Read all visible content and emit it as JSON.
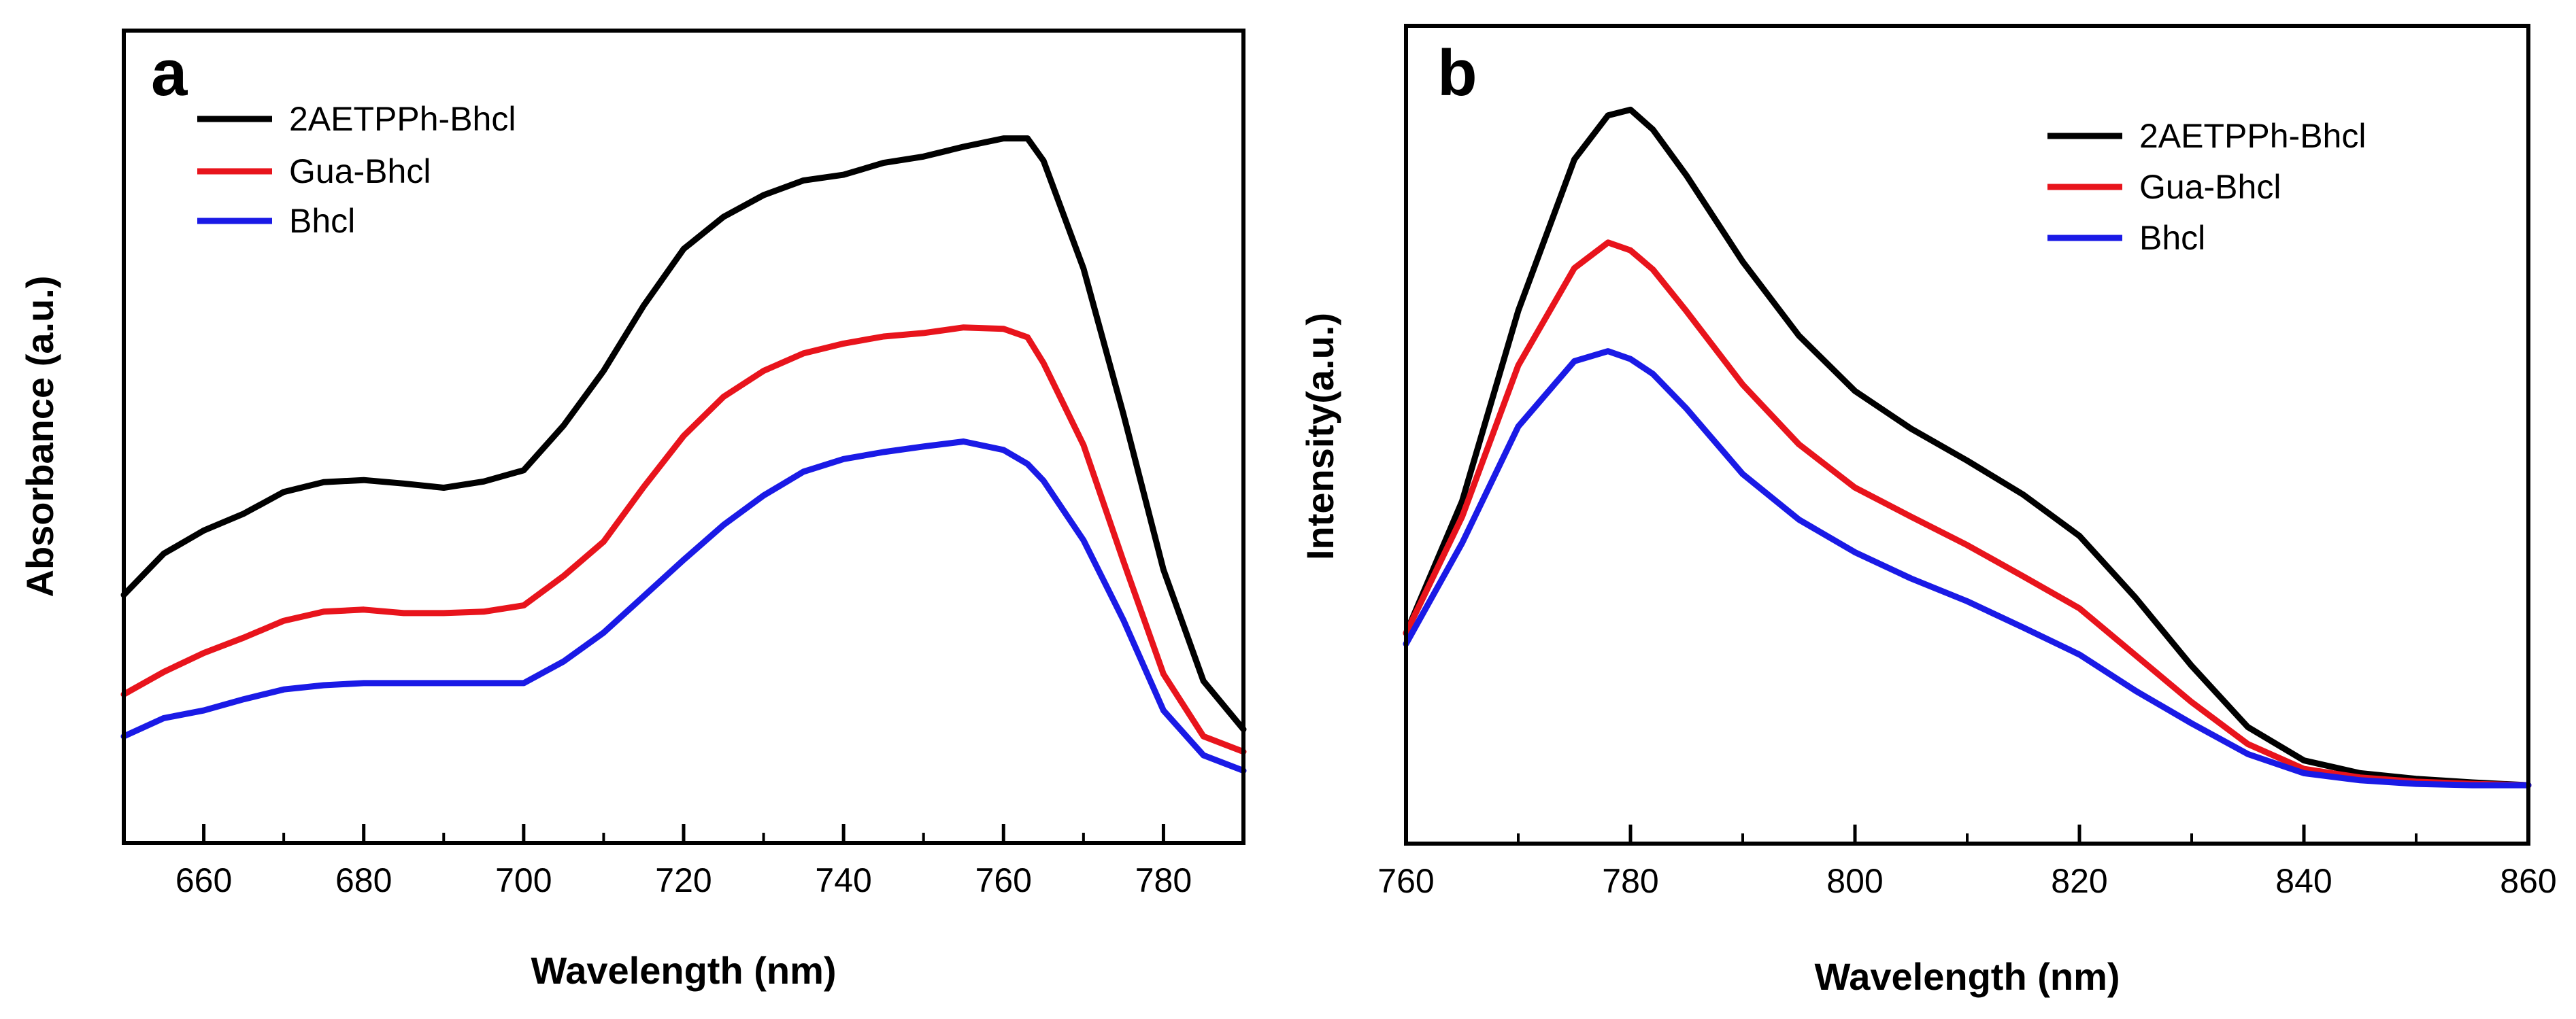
{
  "chart_data": [
    {
      "type": "line",
      "panel": "a",
      "xlabel": "Wavelength (nm)",
      "ylabel": "Absorbance (a.u.)",
      "xlim": [
        650,
        790
      ],
      "ylim": [
        0,
        1
      ],
      "x_ticks": [
        660,
        680,
        700,
        720,
        740,
        760,
        780
      ],
      "y_ticks_shown": false,
      "legend_position": "top-left",
      "x": [
        650,
        655,
        660,
        665,
        670,
        675,
        680,
        685,
        690,
        695,
        700,
        705,
        710,
        715,
        720,
        725,
        730,
        735,
        740,
        745,
        750,
        755,
        760,
        763,
        765,
        770,
        775,
        780,
        785,
        790
      ],
      "series": [
        {
          "name": "2AETPPh-Bhcl",
          "color": "#000000",
          "values": [
            0.296,
            0.355,
            0.388,
            0.412,
            0.443,
            0.457,
            0.46,
            0.455,
            0.449,
            0.458,
            0.474,
            0.538,
            0.616,
            0.709,
            0.79,
            0.836,
            0.867,
            0.888,
            0.896,
            0.913,
            0.922,
            0.936,
            0.948,
            0.948,
            0.916,
            0.762,
            0.554,
            0.332,
            0.173,
            0.104
          ]
        },
        {
          "name": "Gua-Bhcl",
          "color": "#e8141c",
          "values": [
            0.154,
            0.186,
            0.213,
            0.235,
            0.259,
            0.272,
            0.275,
            0.27,
            0.27,
            0.272,
            0.281,
            0.323,
            0.372,
            0.45,
            0.523,
            0.579,
            0.616,
            0.641,
            0.655,
            0.665,
            0.67,
            0.678,
            0.676,
            0.664,
            0.627,
            0.51,
            0.344,
            0.183,
            0.094,
            0.072
          ]
        },
        {
          "name": "Bhcl",
          "color": "#1a1ae6",
          "values": [
            0.094,
            0.12,
            0.131,
            0.147,
            0.161,
            0.167,
            0.17,
            0.17,
            0.17,
            0.17,
            0.17,
            0.201,
            0.242,
            0.294,
            0.346,
            0.396,
            0.438,
            0.472,
            0.49,
            0.5,
            0.508,
            0.515,
            0.503,
            0.483,
            0.459,
            0.374,
            0.26,
            0.131,
            0.067,
            0.045
          ]
        }
      ]
    },
    {
      "type": "line",
      "panel": "b",
      "xlabel": "Wavelength (nm)",
      "ylabel": "Intensity(a.u.)",
      "xlim": [
        760,
        860
      ],
      "ylim": [
        0,
        1
      ],
      "x_ticks": [
        760,
        780,
        800,
        820,
        840,
        860
      ],
      "y_ticks_shown": false,
      "legend_position": "top-right",
      "x": [
        760,
        765,
        770,
        775,
        778,
        780,
        782,
        785,
        790,
        795,
        800,
        805,
        810,
        815,
        820,
        825,
        830,
        835,
        840,
        845,
        850,
        855,
        860
      ],
      "series": [
        {
          "name": "2AETPPh-Bhcl",
          "color": "#000000",
          "values": [
            0.233,
            0.419,
            0.687,
            0.9,
            0.962,
            0.97,
            0.942,
            0.877,
            0.756,
            0.652,
            0.574,
            0.521,
            0.476,
            0.428,
            0.37,
            0.283,
            0.187,
            0.101,
            0.054,
            0.036,
            0.028,
            0.023,
            0.019
          ]
        },
        {
          "name": "Gua-Bhcl",
          "color": "#e8141c",
          "values": [
            0.233,
            0.397,
            0.61,
            0.747,
            0.783,
            0.772,
            0.745,
            0.686,
            0.583,
            0.499,
            0.438,
            0.397,
            0.357,
            0.313,
            0.268,
            0.202,
            0.136,
            0.077,
            0.042,
            0.03,
            0.024,
            0.021,
            0.019
          ]
        },
        {
          "name": "Bhcl",
          "color": "#1a1ae6",
          "values": [
            0.218,
            0.36,
            0.524,
            0.616,
            0.63,
            0.619,
            0.598,
            0.549,
            0.457,
            0.393,
            0.347,
            0.31,
            0.278,
            0.241,
            0.203,
            0.152,
            0.106,
            0.063,
            0.036,
            0.026,
            0.021,
            0.019,
            0.019
          ]
        }
      ]
    }
  ]
}
